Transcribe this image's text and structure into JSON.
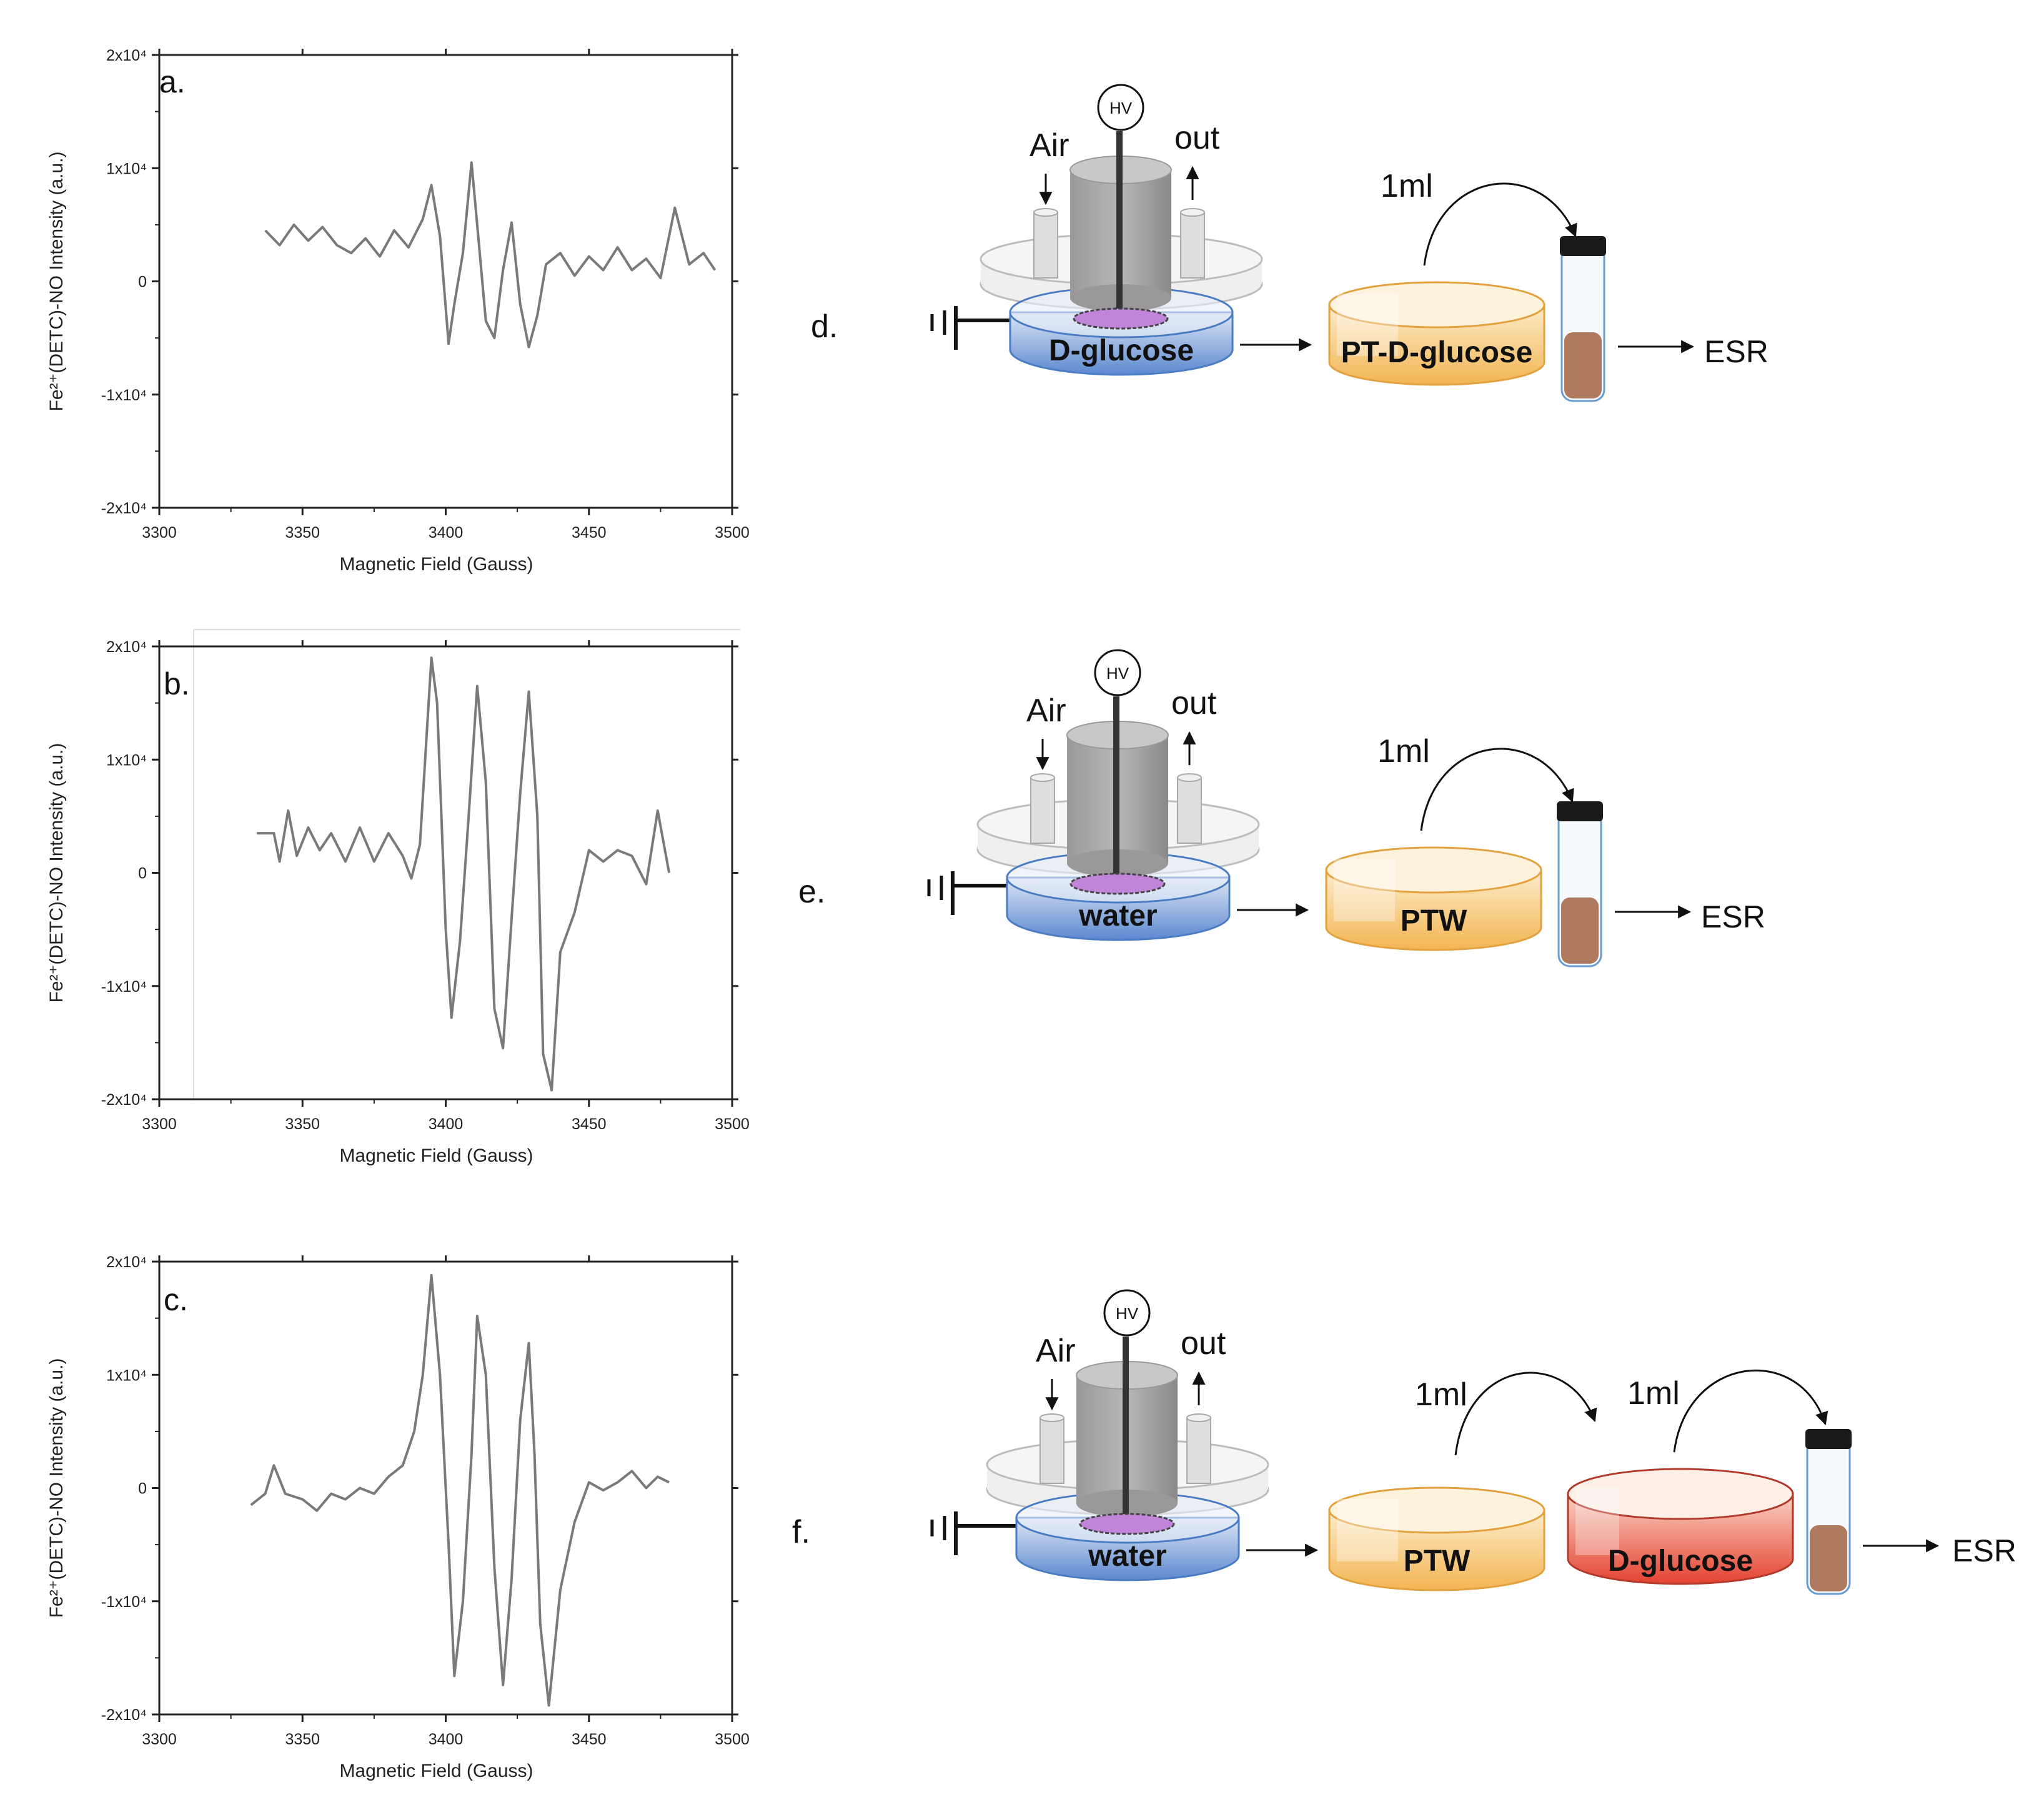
{
  "chart_data": [
    {
      "type": "line",
      "panel": "a.",
      "xlabel": "Magnetic Field (Gauss)",
      "ylabel": "Fe²⁺(DETC)-NO Intensity (a.u.)",
      "xlim": [
        3300,
        3500
      ],
      "ylim": [
        -20000,
        20000
      ],
      "xticks": [
        "3300",
        "3350",
        "3400",
        "3450",
        "3500"
      ],
      "yticks": [
        "2x10⁴",
        "1x10⁴",
        "0",
        "-1x10⁴",
        "-2x10⁴"
      ],
      "series": [
        {
          "name": "spectrum",
          "x": [
            3337,
            3342,
            3347,
            3352,
            3357,
            3362,
            3367,
            3372,
            3377,
            3382,
            3387,
            3392,
            3395,
            3398,
            3401,
            3403,
            3406,
            3409,
            3411,
            3414,
            3417,
            3420,
            3423,
            3426,
            3429,
            3432,
            3435,
            3440,
            3445,
            3450,
            3455,
            3460,
            3465,
            3470,
            3475,
            3480,
            3485,
            3490,
            3494
          ],
          "y": [
            4500,
            3200,
            5000,
            3600,
            4800,
            3200,
            2500,
            3800,
            2200,
            4500,
            3000,
            5500,
            8500,
            4000,
            -5500,
            -2000,
            2500,
            10500,
            5000,
            -3500,
            -5000,
            1000,
            5200,
            -2000,
            -5800,
            -3000,
            1500,
            2500,
            500,
            2200,
            1000,
            3000,
            1000,
            2000,
            300,
            6500,
            1500,
            2500,
            1000
          ]
        }
      ]
    },
    {
      "type": "line",
      "panel": "b.",
      "xlabel": "Magnetic Field (Gauss)",
      "ylabel": "Fe²⁺(DETC)-NO Intensity (a.u.)",
      "xlim": [
        3300,
        3500
      ],
      "ylim": [
        -20000,
        20000
      ],
      "xticks": [
        "3300",
        "3350",
        "3400",
        "3450",
        "3500"
      ],
      "yticks": [
        "2x10⁴",
        "1x10⁴",
        "0",
        "-1x10⁴",
        "-2x10⁴"
      ],
      "series": [
        {
          "name": "spectrum",
          "x": [
            3334,
            3340,
            3342,
            3345,
            3348,
            3352,
            3356,
            3360,
            3365,
            3370,
            3375,
            3380,
            3385,
            3388,
            3391,
            3395,
            3397,
            3400,
            3402,
            3405,
            3408,
            3411,
            3414,
            3417,
            3420,
            3423,
            3426,
            3429,
            3432,
            3434,
            3437,
            3440,
            3445,
            3450,
            3455,
            3460,
            3465,
            3470,
            3474,
            3478
          ],
          "y": [
            3500,
            3500,
            1000,
            5500,
            1500,
            4000,
            2000,
            3500,
            1000,
            4000,
            1000,
            3500,
            1500,
            -500,
            2500,
            19000,
            15000,
            -5000,
            -12800,
            -6000,
            5000,
            16500,
            8000,
            -12000,
            -15500,
            -4000,
            7000,
            16000,
            5000,
            -16000,
            -19200,
            -7000,
            -3500,
            2000,
            1000,
            2000,
            1500,
            -1000,
            5500,
            0
          ]
        }
      ]
    },
    {
      "type": "line",
      "panel": "c.",
      "xlabel": "Magnetic Field (Gauss)",
      "ylabel": "Fe²⁺(DETC)-NO Intensity (a.u.)",
      "xlim": [
        3300,
        3500
      ],
      "ylim": [
        -20000,
        20000
      ],
      "xticks": [
        "3300",
        "3350",
        "3400",
        "3450",
        "3500"
      ],
      "yticks": [
        "2x10⁴",
        "1x10⁴",
        "0",
        "-1x10⁴",
        "-2x10⁴"
      ],
      "series": [
        {
          "name": "spectrum",
          "x": [
            3332,
            3337,
            3340,
            3344,
            3350,
            3355,
            3360,
            3365,
            3370,
            3375,
            3380,
            3385,
            3389,
            3392,
            3395,
            3398,
            3401,
            3403,
            3406,
            3409,
            3411,
            3414,
            3417,
            3420,
            3423,
            3426,
            3429,
            3431,
            3433,
            3436,
            3440,
            3445,
            3450,
            3455,
            3460,
            3465,
            3470,
            3474,
            3478
          ],
          "y": [
            -1500,
            -500,
            2000,
            -500,
            -1000,
            -2000,
            -500,
            -1000,
            0,
            -500,
            1000,
            2000,
            5000,
            10000,
            18800,
            10000,
            -5000,
            -16600,
            -10000,
            3000,
            15200,
            10000,
            -7000,
            -17400,
            -8000,
            6000,
            12800,
            3000,
            -12000,
            -19200,
            -9000,
            -3000,
            500,
            -200,
            500,
            1500,
            0,
            1000,
            500
          ]
        }
      ]
    }
  ],
  "diagrams": {
    "d": {
      "letter": "d.",
      "hv": "HV",
      "air": "Air",
      "out": "out",
      "reactor_liquid": "D-glucose",
      "dish1": "PT-D-glucose",
      "transfer1": "1ml",
      "esr": "ESR"
    },
    "e": {
      "letter": "e.",
      "hv": "HV",
      "air": "Air",
      "out": "out",
      "reactor_liquid": "water",
      "dish1": "PTW",
      "transfer1": "1ml",
      "esr": "ESR"
    },
    "f": {
      "letter": "f.",
      "hv": "HV",
      "air": "Air",
      "out": "out",
      "reactor_liquid": "water",
      "dish1": "PTW",
      "dish2": "D-glucose",
      "transfer1": "1ml",
      "transfer2": "1ml",
      "esr": "ESR"
    }
  },
  "colors": {
    "trace": "#7a7a7a",
    "axis": "#222222",
    "reactor_blue": "#6d98d6",
    "dish_orange": "#f2bd63",
    "dish_red": "#e65543",
    "vial_fill": "#b07a60",
    "electrode": "#8d8a8d"
  }
}
